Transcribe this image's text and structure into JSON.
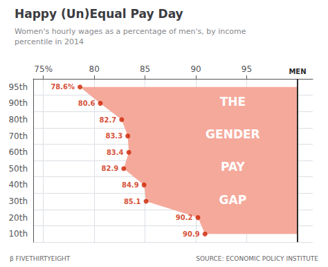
{
  "chart_data": {
    "type": "scatter",
    "title": "Happy (Un)Equal Pay Day",
    "subtitle": "Women's hourly wages as a percentage of men's, by income\npercentile in 2014",
    "orientation": "horizontal",
    "categories": [
      "95th",
      "90th",
      "80th",
      "70th",
      "60th",
      "50th",
      "40th",
      "30th",
      "20th",
      "10th"
    ],
    "values": [
      78.6,
      80.6,
      82.7,
      83.3,
      83.4,
      82.9,
      84.9,
      85.1,
      90.2,
      90.9
    ],
    "value_labels": [
      "78.6%",
      "80.6",
      "82.7",
      "83.3",
      "83.4",
      "82.9",
      "84.9",
      "85.1",
      "90.2",
      "90.9"
    ],
    "data_labels": true,
    "color": "#cc2200",
    "fill_color": "#f5a99b",
    "reference_line": {
      "value": 100,
      "label": "MEN"
    },
    "annotations": [
      "THE",
      "GENDER",
      "PAY",
      "GAP"
    ],
    "xlim": [
      74,
      101.5
    ],
    "xticks": [
      {
        "value": 75,
        "label": "75%"
      },
      80,
      85,
      90,
      95
    ],
    "grid": true,
    "footer_left": "β FIVETHIRTYEIGHT",
    "footer_right": "SOURCE: ECONOMIC POLICY INSTITUTE"
  }
}
